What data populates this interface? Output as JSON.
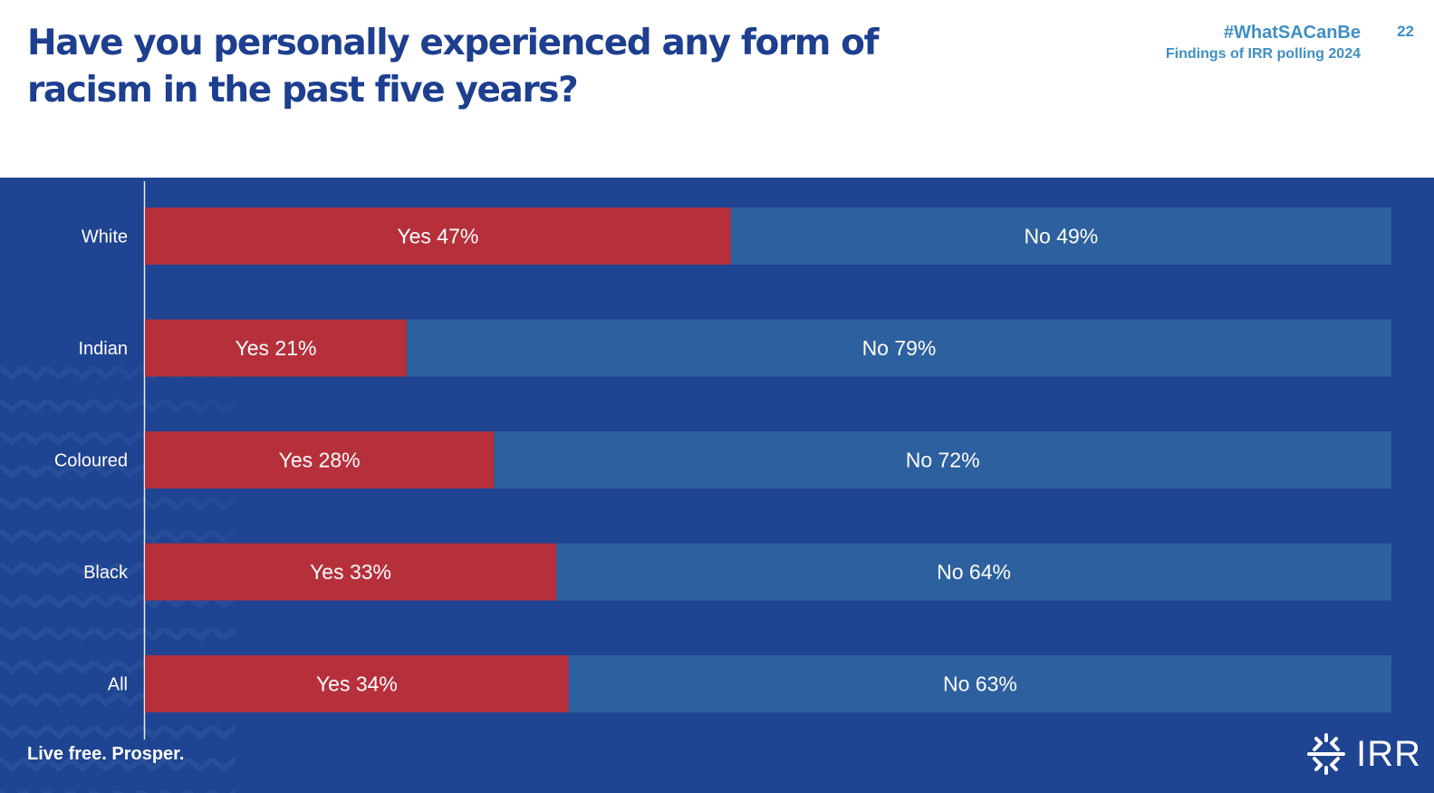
{
  "header": {
    "title": "Have you personally experienced any form of racism in the past five years?",
    "hashtag": "#WhatSACanBe",
    "subtitle": "Findings of IRR polling 2024",
    "page_number": "22"
  },
  "footer": {
    "tagline": "Live free. Prosper.",
    "logo_text": "IRR"
  },
  "colors": {
    "yes": "#b6303c",
    "no": "#2d609e",
    "background": "#1f4492",
    "title": "#1e3f8f",
    "accent": "#3f8fc4"
  },
  "chart_data": {
    "type": "bar",
    "orientation": "horizontal",
    "stacked": true,
    "categories": [
      "White",
      "Indian",
      "Coloured",
      "Black",
      "All"
    ],
    "series": [
      {
        "name": "Yes",
        "values": [
          47,
          21,
          28,
          33,
          34
        ]
      },
      {
        "name": "No",
        "values": [
          49,
          79,
          72,
          64,
          63
        ]
      }
    ],
    "labels": [
      [
        "Yes 47%",
        "No 49%"
      ],
      [
        "Yes 21%",
        "No 79%"
      ],
      [
        "Yes 28%",
        "No 72%"
      ],
      [
        "Yes 33%",
        "No 64%"
      ],
      [
        "Yes 34%",
        "No 63%"
      ]
    ],
    "xlim": [
      0,
      100
    ],
    "unit": "%",
    "grid": false,
    "legend": "none"
  }
}
